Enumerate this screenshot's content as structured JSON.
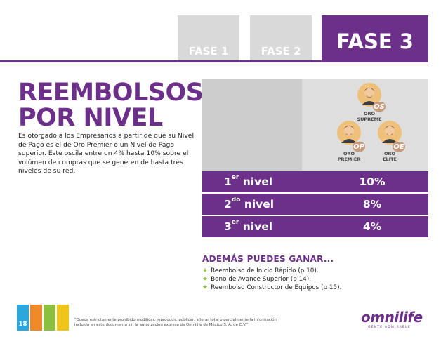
{
  "tabs": [
    "FASE 1",
    "FASE 2",
    "FASE 3"
  ],
  "title_line1": "REEMBOLSOS",
  "title_line2": "POR NIVEL",
  "description": "Es otorgado a los Empresarios a partir de que su Nivel de Pago es el de Oro Premier o un Nivel de Pago superior. Este oscila entre un 4% hasta 10% sobre el volúmen de compras que se generen de hasta tres niveles de su red.",
  "ranks": [
    {
      "badge": "OS",
      "line1": "ORO",
      "line2": "SUPREME"
    },
    {
      "badge": "OP",
      "line1": "ORO",
      "line2": "PREMIER"
    },
    {
      "badge": "OE",
      "line1": "ORO",
      "line2": "ELITE"
    }
  ],
  "levels": [
    {
      "num": "1",
      "sup": "er",
      "word": " nivel",
      "pct": "10%"
    },
    {
      "num": "2",
      "sup": "do",
      "word": " nivel",
      "pct": "8%"
    },
    {
      "num": "3",
      "sup": "er",
      "word": " nivel",
      "pct": "4%"
    }
  ],
  "gain_title": "ADEMÁS PUEDES GANAR...",
  "gains": [
    "Reembolso de Inicio Rápido (p 10).",
    "Bono de Avance Superior (p 14).",
    "Reembolso Constructor de Equipos (p 15)."
  ],
  "footer": {
    "page": "18",
    "notice": "\"Queda estrictamente prohibido modificar, reproducir, publicar, alterar total o parcialmente la información incluida en este documento sin la autorización expresa de Omnilife de México S. A. de C.V.\"",
    "logo": "omnilife",
    "logo_sub": "GENTE ADMIRABLE"
  },
  "colors": {
    "purple": "#6c2f8a",
    "green": "#8bbf3f",
    "blue": "#2aa7dc",
    "orange": "#ef8a2a",
    "yellow": "#f0c419"
  }
}
